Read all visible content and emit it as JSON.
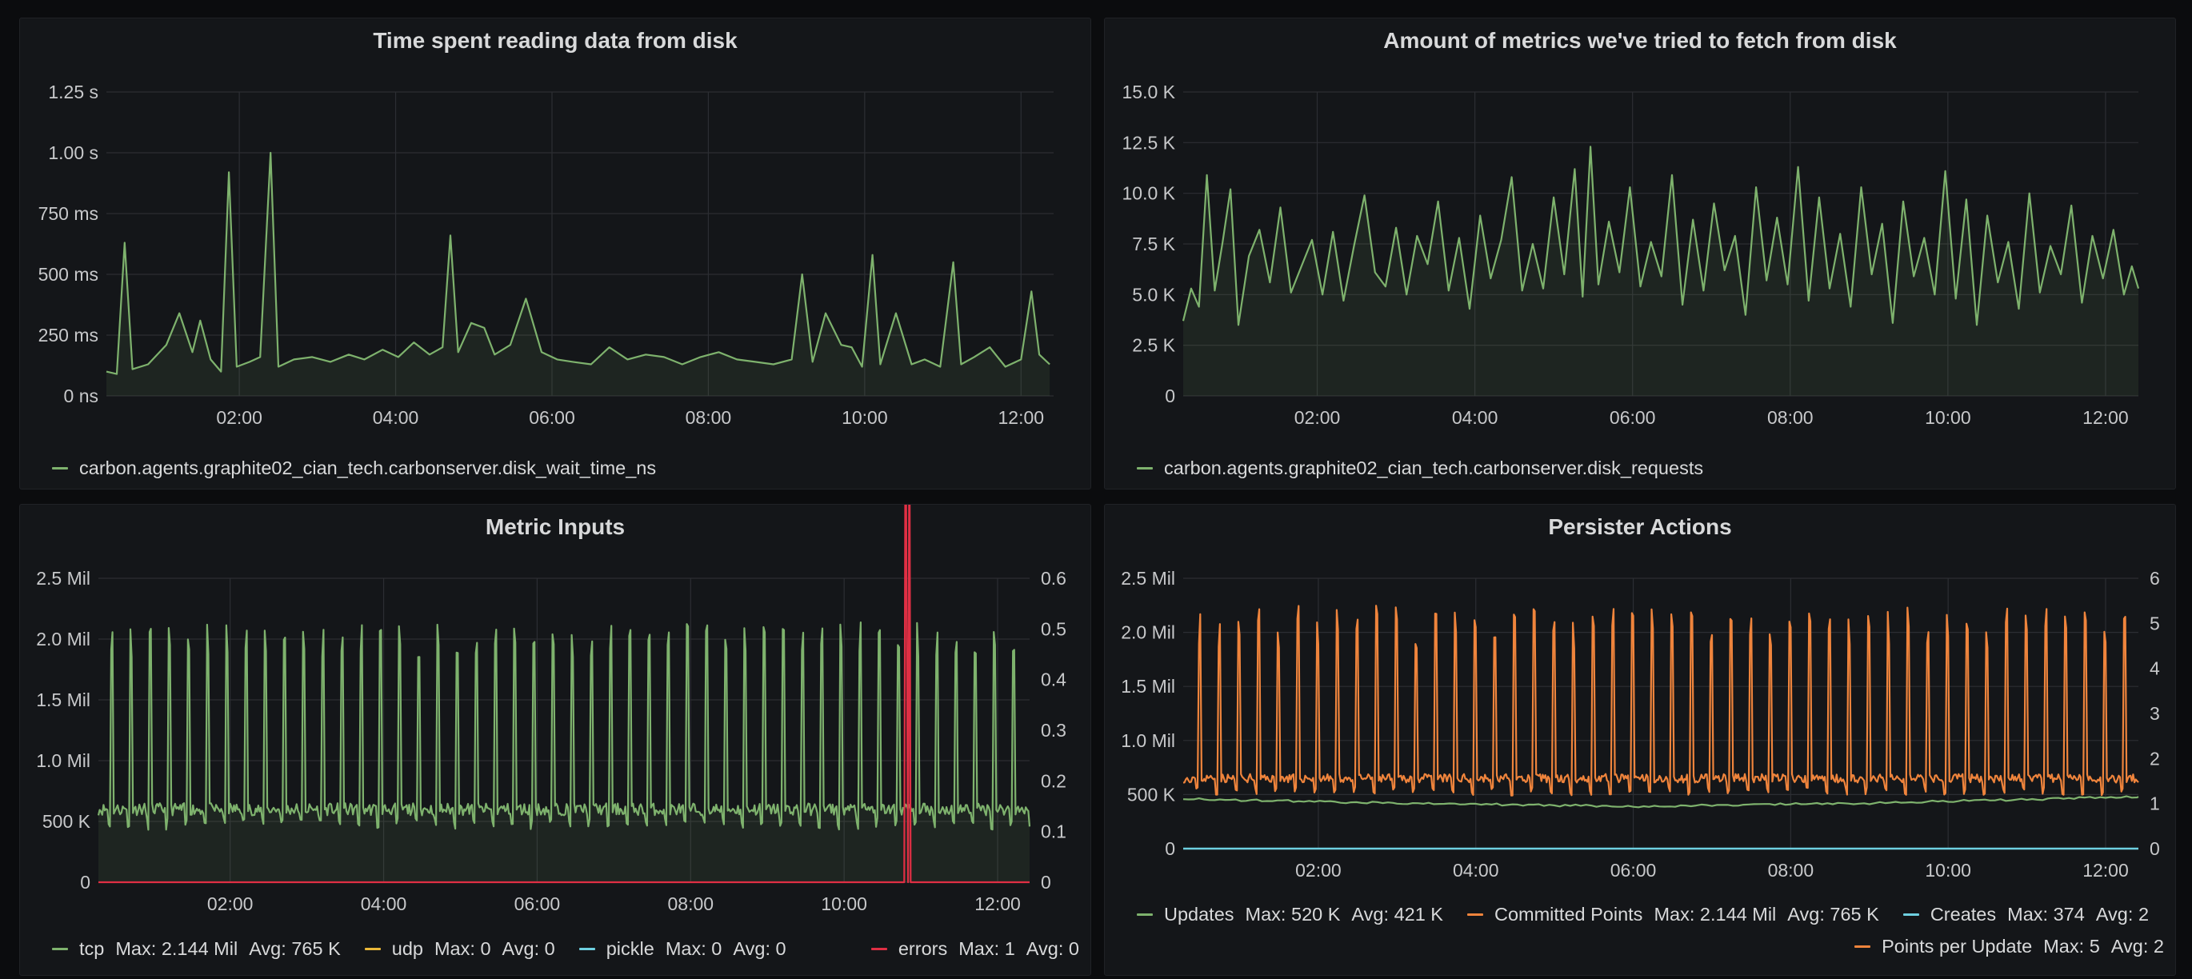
{
  "panels": [
    {
      "title": "Time spent reading data from disk"
    },
    {
      "title": "Amount of metrics we've tried to fetch from disk"
    },
    {
      "title": "Metric Inputs"
    },
    {
      "title": "Persister Actions"
    }
  ],
  "chart_data": [
    {
      "type": "line",
      "title": "Time spent reading data from disk",
      "x_ticks": [
        "02:00",
        "04:00",
        "06:00",
        "08:00",
        "10:00",
        "12:00"
      ],
      "y_ticks": [
        "0 ns",
        "250 ms",
        "500 ms",
        "750 ms",
        "1.00 s",
        "1.25 s"
      ],
      "ylim": [
        0,
        1.25
      ],
      "y_unit": "s",
      "x_range": [
        "00:18",
        "12:25"
      ],
      "grid": true,
      "legend_position": "bottom-left",
      "series": [
        {
          "name": "carbon.agents.graphite02_cian_tech.carbonserver.disk_wait_time_ns",
          "color": "#7eb26d",
          "points": [
            [
              "00:18",
              0.1
            ],
            [
              "00:26",
              0.09
            ],
            [
              "00:32",
              0.63
            ],
            [
              "00:38",
              0.11
            ],
            [
              "00:50",
              0.13
            ],
            [
              "01:04",
              0.21
            ],
            [
              "01:14",
              0.34
            ],
            [
              "01:24",
              0.18
            ],
            [
              "01:30",
              0.31
            ],
            [
              "01:38",
              0.15
            ],
            [
              "01:46",
              0.1
            ],
            [
              "01:52",
              0.92
            ],
            [
              "01:58",
              0.12
            ],
            [
              "02:08",
              0.14
            ],
            [
              "02:16",
              0.16
            ],
            [
              "02:24",
              1.0
            ],
            [
              "02:30",
              0.12
            ],
            [
              "02:42",
              0.15
            ],
            [
              "02:56",
              0.16
            ],
            [
              "03:10",
              0.14
            ],
            [
              "03:24",
              0.17
            ],
            [
              "03:36",
              0.15
            ],
            [
              "03:50",
              0.19
            ],
            [
              "04:02",
              0.16
            ],
            [
              "04:14",
              0.22
            ],
            [
              "04:26",
              0.17
            ],
            [
              "04:36",
              0.2
            ],
            [
              "04:42",
              0.66
            ],
            [
              "04:48",
              0.18
            ],
            [
              "04:58",
              0.3
            ],
            [
              "05:08",
              0.28
            ],
            [
              "05:16",
              0.17
            ],
            [
              "05:28",
              0.21
            ],
            [
              "05:40",
              0.4
            ],
            [
              "05:52",
              0.18
            ],
            [
              "06:04",
              0.15
            ],
            [
              "06:16",
              0.14
            ],
            [
              "06:30",
              0.13
            ],
            [
              "06:44",
              0.2
            ],
            [
              "06:58",
              0.15
            ],
            [
              "07:12",
              0.17
            ],
            [
              "07:26",
              0.16
            ],
            [
              "07:40",
              0.13
            ],
            [
              "07:54",
              0.16
            ],
            [
              "08:08",
              0.18
            ],
            [
              "08:22",
              0.15
            ],
            [
              "08:36",
              0.14
            ],
            [
              "08:50",
              0.13
            ],
            [
              "09:04",
              0.15
            ],
            [
              "09:12",
              0.5
            ],
            [
              "09:20",
              0.14
            ],
            [
              "09:30",
              0.34
            ],
            [
              "09:42",
              0.21
            ],
            [
              "09:50",
              0.2
            ],
            [
              "09:58",
              0.12
            ],
            [
              "10:06",
              0.58
            ],
            [
              "10:12",
              0.13
            ],
            [
              "10:24",
              0.34
            ],
            [
              "10:36",
              0.13
            ],
            [
              "10:46",
              0.15
            ],
            [
              "10:58",
              0.12
            ],
            [
              "11:08",
              0.55
            ],
            [
              "11:14",
              0.13
            ],
            [
              "11:24",
              0.16
            ],
            [
              "11:36",
              0.2
            ],
            [
              "11:48",
              0.12
            ],
            [
              "12:00",
              0.15
            ],
            [
              "12:08",
              0.43
            ],
            [
              "12:14",
              0.17
            ],
            [
              "12:22",
              0.13
            ]
          ]
        }
      ]
    },
    {
      "type": "line",
      "title": "Amount of metrics we've tried to fetch from disk",
      "x_ticks": [
        "02:00",
        "04:00",
        "06:00",
        "08:00",
        "10:00",
        "12:00"
      ],
      "y_ticks": [
        "0",
        "2.5 K",
        "5.0 K",
        "7.5 K",
        "10.0 K",
        "12.5 K",
        "15.0 K"
      ],
      "ylim": [
        0,
        15000
      ],
      "x_range": [
        "00:18",
        "12:25"
      ],
      "grid": true,
      "legend_position": "bottom-left",
      "series": [
        {
          "name": "carbon.agents.graphite02_cian_tech.carbonserver.disk_requests",
          "color": "#7eb26d",
          "points": [
            [
              "00:18",
              3700
            ],
            [
              "00:24",
              5300
            ],
            [
              "00:30",
              4400
            ],
            [
              "00:36",
              10900
            ],
            [
              "00:42",
              5200
            ],
            [
              "00:48",
              7600
            ],
            [
              "00:54",
              10200
            ],
            [
              "01:00",
              3500
            ],
            [
              "01:08",
              6900
            ],
            [
              "01:16",
              8200
            ],
            [
              "01:24",
              5600
            ],
            [
              "01:32",
              9300
            ],
            [
              "01:40",
              5100
            ],
            [
              "01:48",
              6400
            ],
            [
              "01:56",
              7700
            ],
            [
              "02:04",
              5000
            ],
            [
              "02:12",
              8100
            ],
            [
              "02:20",
              4700
            ],
            [
              "02:28",
              7400
            ],
            [
              "02:36",
              9900
            ],
            [
              "02:44",
              6100
            ],
            [
              "02:52",
              5400
            ],
            [
              "03:00",
              8300
            ],
            [
              "03:08",
              5000
            ],
            [
              "03:16",
              7900
            ],
            [
              "03:24",
              6500
            ],
            [
              "03:32",
              9600
            ],
            [
              "03:40",
              5200
            ],
            [
              "03:48",
              7800
            ],
            [
              "03:56",
              4300
            ],
            [
              "04:04",
              8900
            ],
            [
              "04:12",
              5800
            ],
            [
              "04:20",
              7700
            ],
            [
              "04:28",
              10800
            ],
            [
              "04:36",
              5200
            ],
            [
              "04:44",
              7500
            ],
            [
              "04:52",
              5300
            ],
            [
              "05:00",
              9800
            ],
            [
              "05:08",
              6000
            ],
            [
              "05:16",
              11200
            ],
            [
              "05:22",
              4900
            ],
            [
              "05:28",
              12300
            ],
            [
              "05:34",
              5500
            ],
            [
              "05:42",
              8600
            ],
            [
              "05:50",
              6100
            ],
            [
              "05:58",
              10300
            ],
            [
              "06:06",
              5400
            ],
            [
              "06:14",
              7600
            ],
            [
              "06:22",
              5900
            ],
            [
              "06:30",
              10900
            ],
            [
              "06:38",
              4500
            ],
            [
              "06:46",
              8700
            ],
            [
              "06:54",
              5200
            ],
            [
              "07:02",
              9500
            ],
            [
              "07:10",
              6200
            ],
            [
              "07:18",
              7900
            ],
            [
              "07:26",
              4000
            ],
            [
              "07:34",
              10300
            ],
            [
              "07:42",
              5700
            ],
            [
              "07:50",
              8800
            ],
            [
              "07:58",
              5500
            ],
            [
              "08:06",
              11300
            ],
            [
              "08:14",
              4700
            ],
            [
              "08:22",
              9800
            ],
            [
              "08:30",
              5300
            ],
            [
              "08:38",
              8000
            ],
            [
              "08:46",
              4400
            ],
            [
              "08:54",
              10300
            ],
            [
              "09:02",
              6000
            ],
            [
              "09:10",
              8500
            ],
            [
              "09:18",
              3600
            ],
            [
              "09:26",
              9600
            ],
            [
              "09:34",
              5900
            ],
            [
              "09:42",
              7800
            ],
            [
              "09:50",
              5000
            ],
            [
              "09:58",
              11100
            ],
            [
              "10:06",
              4800
            ],
            [
              "10:14",
              9700
            ],
            [
              "10:22",
              3500
            ],
            [
              "10:30",
              8900
            ],
            [
              "10:38",
              5600
            ],
            [
              "10:46",
              7600
            ],
            [
              "10:54",
              4300
            ],
            [
              "11:02",
              10000
            ],
            [
              "11:10",
              5100
            ],
            [
              "11:18",
              7400
            ],
            [
              "11:26",
              6000
            ],
            [
              "11:34",
              9400
            ],
            [
              "11:42",
              4600
            ],
            [
              "11:50",
              7900
            ],
            [
              "11:58",
              5800
            ],
            [
              "12:06",
              8200
            ],
            [
              "12:14",
              5000
            ],
            [
              "12:20",
              6400
            ],
            [
              "12:25",
              5300
            ]
          ]
        }
      ]
    },
    {
      "type": "line",
      "title": "Metric Inputs",
      "x_ticks": [
        "02:00",
        "04:00",
        "06:00",
        "08:00",
        "10:00",
        "12:00"
      ],
      "y_ticks_left": [
        "0",
        "500 K",
        "1.0 Mil",
        "1.5 Mil",
        "2.0 Mil",
        "2.5 Mil"
      ],
      "y_ticks_right": [
        "0",
        "0.1",
        "0.2",
        "0.3",
        "0.4",
        "0.5",
        "0.6"
      ],
      "ylim_left": [
        0,
        2500000
      ],
      "ylim_right": [
        0,
        0.6
      ],
      "x_range": [
        "00:17",
        "12:25"
      ],
      "grid": true,
      "legend_position": "bottom",
      "pattern": {
        "period_min": 15,
        "base": 600000,
        "base_jitter": 100000,
        "peak": 2000000,
        "peak_range": [
          1850000,
          2140000
        ],
        "peak_width_min": 2
      },
      "series": [
        {
          "name": "tcp",
          "color": "#7eb26d",
          "axis": "left",
          "max": "2.144 Mil",
          "avg": "765 K"
        },
        {
          "name": "udp",
          "color": "#eab839",
          "axis": "left",
          "max": "0",
          "avg": "0",
          "values": [
            0
          ]
        },
        {
          "name": "pickle",
          "color": "#6ed0e0",
          "axis": "left",
          "max": "0",
          "avg": "0",
          "values": [
            0
          ]
        },
        {
          "name": "errors",
          "color": "#e02f44",
          "axis": "right",
          "max": "1",
          "avg": "0",
          "points": [
            [
              "00:17",
              0
            ],
            [
              "10:47",
              0
            ],
            [
              "10:48",
              1
            ],
            [
              "10:50",
              0
            ],
            [
              "10:51",
              1
            ],
            [
              "10:52",
              0
            ],
            [
              "12:25",
              0
            ]
          ]
        }
      ]
    },
    {
      "type": "line",
      "title": "Persister Actions",
      "x_ticks": [
        "02:00",
        "04:00",
        "06:00",
        "08:00",
        "10:00",
        "12:00"
      ],
      "y_ticks_left": [
        "0",
        "500 K",
        "1.0 Mil",
        "1.5 Mil",
        "2.0 Mil",
        "2.5 Mil"
      ],
      "y_ticks_right": [
        "0",
        "1",
        "2",
        "3",
        "4",
        "5",
        "6"
      ],
      "ylim_left": [
        0,
        2500000
      ],
      "ylim_right": [
        0,
        6
      ],
      "x_range": [
        "00:17",
        "12:25"
      ],
      "grid": true,
      "legend_position": "bottom",
      "pattern": {
        "period_min": 15,
        "base": 650000,
        "base_jitter": 80000,
        "peak": 2050000,
        "peak_range": [
          1850000,
          2250000
        ],
        "peak_width_min": 2
      },
      "series": [
        {
          "name": "Updates",
          "color": "#7eb26d",
          "axis": "left",
          "max": "520 K",
          "avg": "421 K",
          "points": [
            [
              "00:17",
              460000
            ],
            [
              "03:00",
              420000
            ],
            [
              "06:00",
              390000
            ],
            [
              "09:00",
              420000
            ],
            [
              "12:25",
              480000
            ]
          ]
        },
        {
          "name": "Committed Points",
          "color": "#ef843c",
          "axis": "left",
          "max": "2.144 Mil",
          "avg": "765 K"
        },
        {
          "name": "Creates",
          "color": "#6ed0e0",
          "axis": "left",
          "max": "374",
          "avg": "2",
          "values": [
            0
          ]
        },
        {
          "name": "Points per Update",
          "color": "#ef843c",
          "axis": "right",
          "max": "5",
          "avg": "2"
        }
      ]
    }
  ]
}
